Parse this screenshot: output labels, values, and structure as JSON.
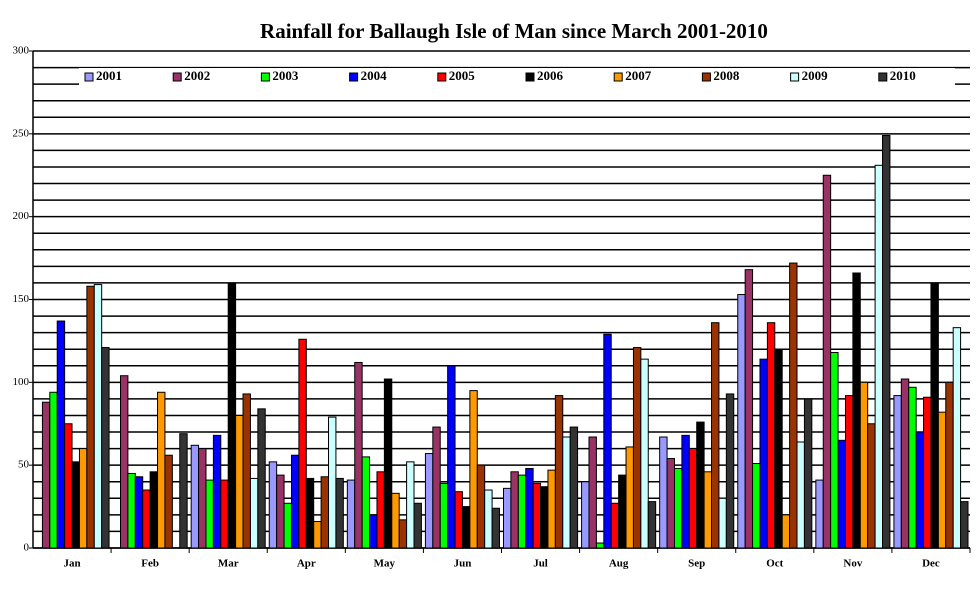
{
  "chart_data": {
    "type": "bar",
    "title": "Rainfall for Ballaugh Isle of Man since March 2001-2010",
    "categories": [
      "Jan",
      "Feb",
      "Mar",
      "Apr",
      "May",
      "Jun",
      "Jul",
      "Aug",
      "Sep",
      "Oct",
      "Nov",
      "Dec"
    ],
    "ylim": [
      0,
      300
    ],
    "yticks": [
      0,
      50,
      100,
      150,
      200,
      250,
      300
    ],
    "minor_yticks": [
      10,
      20,
      30,
      40,
      60,
      70,
      80,
      90,
      110,
      120,
      130,
      140,
      160,
      170,
      180,
      190,
      210,
      220,
      230,
      240,
      260,
      270,
      280,
      290
    ],
    "grid": true,
    "legend": "top",
    "series": [
      {
        "name": "2001",
        "color": "#9999ff",
        "values": [
          null,
          null,
          62,
          52,
          41,
          57,
          36,
          40,
          67,
          153,
          41,
          92
        ]
      },
      {
        "name": "2002",
        "color": "#993366",
        "values": [
          88,
          104,
          60,
          44,
          112,
          73,
          46,
          67,
          54,
          168,
          225,
          102
        ]
      },
      {
        "name": "2003",
        "color": "#00ff00",
        "values": [
          94,
          45,
          41,
          27,
          55,
          39,
          44,
          3,
          48,
          51,
          118,
          97
        ]
      },
      {
        "name": "2004",
        "color": "#0000ff",
        "values": [
          137,
          43,
          68,
          56,
          20,
          110,
          48,
          129,
          68,
          114,
          65,
          70
        ]
      },
      {
        "name": "2005",
        "color": "#ff0000",
        "values": [
          75,
          35,
          41,
          126,
          46,
          34,
          39,
          27,
          60,
          136,
          92,
          91
        ]
      },
      {
        "name": "2006",
        "color": "#000000",
        "values": [
          52,
          46,
          160,
          42,
          102,
          25,
          37,
          44,
          76,
          120,
          166,
          160
        ]
      },
      {
        "name": "2007",
        "color": "#ff9900",
        "values": [
          60,
          94,
          80,
          16,
          33,
          95,
          47,
          61,
          46,
          20,
          100,
          82
        ]
      },
      {
        "name": "2008",
        "color": "#993300",
        "values": [
          158,
          56,
          93,
          43,
          17,
          50,
          92,
          121,
          136,
          172,
          75,
          100
        ]
      },
      {
        "name": "2009",
        "color": "#ccffff",
        "values": [
          159,
          null,
          42,
          79,
          52,
          35,
          67,
          114,
          30,
          64,
          231,
          133
        ]
      },
      {
        "name": "2010",
        "color": "#333333",
        "values": [
          121,
          69,
          84,
          42,
          27,
          24,
          73,
          28,
          93,
          90,
          249,
          28
        ]
      }
    ]
  }
}
